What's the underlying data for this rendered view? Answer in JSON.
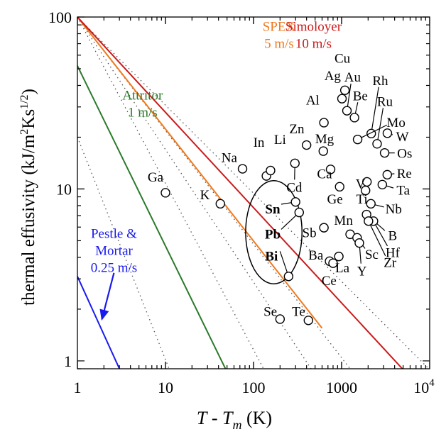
{
  "chart_data": {
    "type": "scatter",
    "title": "",
    "xscale": "log",
    "yscale": "log",
    "xlim": [
      1,
      10000
    ],
    "ylim": [
      0.9,
      100
    ],
    "ylabel_text": "thermal effusivity (kJ/m",
    "ylabel_sup1": "2",
    "ylabel_mid": "Ks",
    "ylabel_sup2": "1/2",
    "ylabel_end": ")",
    "xlabel_T": "T",
    "xlabel_dash": " - ",
    "xlabel_Tm_T": "T",
    "xlabel_sub": "m",
    "xlabel_unit": " (K)",
    "x_ticks": [
      {
        "v": 1,
        "label": "1"
      },
      {
        "v": 10,
        "label": "10"
      },
      {
        "v": 100,
        "label": "100"
      },
      {
        "v": 1000,
        "label": "1000"
      }
    ],
    "x_tick_last": {
      "v": 10000,
      "base": "10",
      "exp": "4"
    },
    "y_ticks": [
      {
        "v": 1,
        "label": "1"
      },
      {
        "v": 10,
        "label": "10"
      },
      {
        "v": 100,
        "label": "100"
      }
    ],
    "speed_lines": [
      {
        "color": "#2a7a2a",
        "p1": [
          1,
          52
        ],
        "p2": [
          48,
          0.9
        ],
        "label_lines": [
          "Attritor",
          "1 m/s"
        ],
        "lx": 5.5,
        "ly": 33
      },
      {
        "color": "#1a1aee",
        "p1": [
          1,
          3.1
        ],
        "p2": [
          3,
          0.9
        ],
        "label_lines": [
          "Pestle &",
          "Mortar",
          "0.25 m/s"
        ],
        "lx": 2.6,
        "ly": 5.2
      },
      {
        "color": "#f07a1e",
        "p1": [
          1,
          100
        ],
        "p2": [
          600,
          1.55
        ],
        "label_lines": [
          "SPEX",
          "5 m/s"
        ],
        "lx": 195,
        "ly": 83
      },
      {
        "color": "#cc1a1a",
        "p1": [
          1,
          100
        ],
        "p2": [
          4900,
          0.9
        ],
        "label_lines": [
          "Simoloyer",
          "10 m/s"
        ],
        "lx": 480,
        "ly": 83
      }
    ],
    "dotted_lines": [
      {
        "p1": [
          1,
          100
        ],
        "p2": [
          10000,
          0.89
        ]
      },
      {
        "p1": [
          1,
          100
        ],
        "p2": [
          1250,
          0.9
        ]
      },
      {
        "p1": [
          1,
          100
        ],
        "p2": [
          450,
          0.9
        ]
      },
      {
        "p1": [
          1,
          100
        ],
        "p2": [
          130,
          0.9
        ]
      },
      {
        "p1": [
          1,
          20
        ],
        "p2": [
          11,
          0.9
        ]
      }
    ],
    "points": [
      {
        "name": "Cu",
        "x": 1090,
        "y": 37.5,
        "lx": 1020,
        "ly": 58,
        "lead": false
      },
      {
        "name": "Ag",
        "x": 1010,
        "y": 33.5,
        "lx": 790,
        "ly": 46,
        "lead": false
      },
      {
        "name": "Au",
        "x": 1150,
        "y": 28.5,
        "lx": 1330,
        "ly": 45,
        "lead": true
      },
      {
        "name": "Be",
        "x": 1400,
        "y": 26,
        "lx": 1630,
        "ly": 35,
        "lead": true
      },
      {
        "name": "Rh",
        "x": 2170,
        "y": 21,
        "lx": 2750,
        "ly": 43,
        "lead": true
      },
      {
        "name": "Ru",
        "x": 2530,
        "y": 18.3,
        "lx": 3100,
        "ly": 32.5,
        "lead": true
      },
      {
        "name": "Mo",
        "x": 1520,
        "y": 19.4,
        "lx": 4150,
        "ly": 24.5,
        "lead": true
      },
      {
        "name": "W",
        "x": 3310,
        "y": 21.1,
        "lx": 4900,
        "ly": 20.3,
        "lead": true
      },
      {
        "name": "Os",
        "x": 3080,
        "y": 16.2,
        "lx": 5200,
        "ly": 16.2,
        "lead": true
      },
      {
        "name": "Al",
        "x": 630,
        "y": 24.3,
        "lx": 470,
        "ly": 33,
        "lead": false
      },
      {
        "name": "Zn",
        "x": 400,
        "y": 18.0,
        "lx": 310,
        "ly": 22.5,
        "lead": false
      },
      {
        "name": "Mg",
        "x": 620,
        "y": 16.6,
        "lx": 640,
        "ly": 19.7,
        "lead": false
      },
      {
        "name": "Ca",
        "x": 750,
        "y": 13.0,
        "lx": 640,
        "ly": 12.3,
        "lead": false
      },
      {
        "name": "Na",
        "x": 75,
        "y": 13.1,
        "lx": 53,
        "ly": 15.3,
        "lead": false
      },
      {
        "name": "In",
        "x": 140,
        "y": 11.9,
        "lx": 115,
        "ly": 18.8,
        "lead": false
      },
      {
        "name": "Li",
        "x": 156,
        "y": 12.8,
        "lx": 200,
        "ly": 19.5,
        "lead": false
      },
      {
        "name": "Ga",
        "x": 10,
        "y": 9.5,
        "lx": 7.7,
        "ly": 11.8,
        "lead": false
      },
      {
        "name": "K",
        "x": 42,
        "y": 8.2,
        "lx": 28,
        "ly": 9.3,
        "lead": false
      },
      {
        "name": "Cd",
        "x": 295,
        "y": 14.1,
        "lx": 290,
        "ly": 10.3,
        "lead": true
      },
      {
        "name": "Ge",
        "x": 950,
        "y": 10.3,
        "lx": 840,
        "ly": 8.8,
        "lead": false
      },
      {
        "name": "Ti",
        "x": 1940,
        "y": 11.0,
        "lx": 1700,
        "ly": 8.8,
        "lead": false
      },
      {
        "name": "V",
        "x": 1870,
        "y": 9.8,
        "lx": 1640,
        "ly": 10.8,
        "lead": false
      },
      {
        "name": "Re",
        "x": 3300,
        "y": 12.1,
        "lx": 5150,
        "ly": 12.4,
        "lead": true
      },
      {
        "name": "Ta",
        "x": 2900,
        "y": 10.6,
        "lx": 5000,
        "ly": 9.9,
        "lead": true
      },
      {
        "name": "Nb",
        "x": 2150,
        "y": 8.2,
        "lx": 3900,
        "ly": 7.7,
        "lead": true
      },
      {
        "name": "B",
        "x": 1920,
        "y": 7.1,
        "lx": 3800,
        "ly": 5.4,
        "lead": true
      },
      {
        "name": "Hf",
        "x": 2300,
        "y": 6.5,
        "lx": 3800,
        "ly": 4.3,
        "lead": true
      },
      {
        "name": "Zr",
        "x": 2020,
        "y": 6.5,
        "lx": 3550,
        "ly": 3.75,
        "lead": true
      },
      {
        "name": "Mn",
        "x": 1250,
        "y": 5.45,
        "lx": 1050,
        "ly": 6.6,
        "lead": false
      },
      {
        "name": "Sc",
        "x": 1500,
        "y": 5.2,
        "lx": 2200,
        "ly": 4.2,
        "lead": true
      },
      {
        "name": "Y",
        "x": 1590,
        "y": 4.85,
        "lx": 1700,
        "ly": 3.35,
        "lead": true
      },
      {
        "name": "Sb",
        "x": 630,
        "y": 5.95,
        "lx": 430,
        "ly": 5.6,
        "lead": false
      },
      {
        "name": "Ba",
        "x": 730,
        "y": 3.8,
        "lx": 510,
        "ly": 4.15,
        "lead": false
      },
      {
        "name": "La",
        "x": 930,
        "y": 4.05,
        "lx": 1020,
        "ly": 3.5,
        "lead": false
      },
      {
        "name": "Ce",
        "x": 800,
        "y": 3.7,
        "lx": 720,
        "ly": 2.95,
        "lead": false
      },
      {
        "name": "Se",
        "x": 200,
        "y": 1.75,
        "lx": 155,
        "ly": 1.95,
        "lead": false
      },
      {
        "name": "Te",
        "x": 420,
        "y": 1.72,
        "lx": 325,
        "ly": 1.95,
        "lead": false
      },
      {
        "name": "Sn",
        "x": 300,
        "y": 8.4,
        "lx": 165,
        "ly": 7.7,
        "lead": false,
        "bold": true
      },
      {
        "name": "Pb",
        "x": 330,
        "y": 7.3,
        "lx": 165,
        "ly": 5.5,
        "lead": false,
        "bold": true
      },
      {
        "name": "Bi",
        "x": 250,
        "y": 3.1,
        "lx": 160,
        "ly": 4.1,
        "lead": false,
        "bold": true
      }
    ],
    "group_ellipse": {
      "cx": 170,
      "cy": 5.6,
      "rx": 0.32,
      "ry": 0.3
    }
  }
}
